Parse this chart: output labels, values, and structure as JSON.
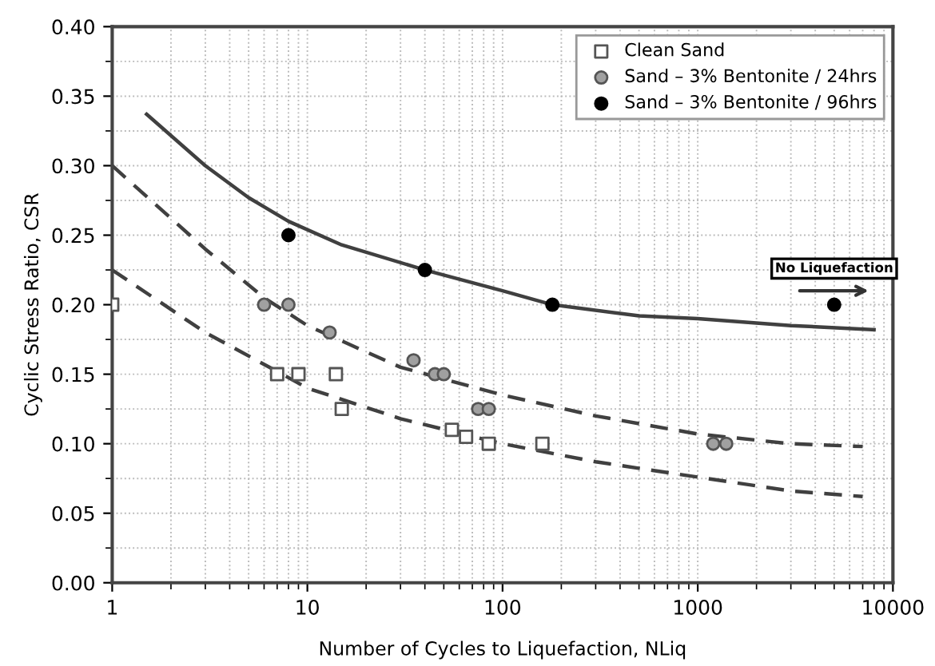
{
  "chart_data": {
    "type": "scatter",
    "xlabel": "Number of Cycles to Liquefaction, NLiq",
    "ylabel": "Cyclic Stress Ratio, CSR",
    "log": "x",
    "xlim": [
      1,
      10000
    ],
    "xticks": [
      1,
      10,
      100,
      1000,
      10000
    ],
    "ylim": [
      0,
      0.4
    ],
    "yticks": [
      {
        "value": 0,
        "label": "0.00"
      },
      {
        "value": 0.05,
        "label": "0.05"
      },
      {
        "value": 0.1,
        "label": "0.10"
      },
      {
        "value": 0.15,
        "label": "0.15"
      },
      {
        "value": 0.2,
        "label": "0.20"
      },
      {
        "value": 0.25,
        "label": "0.25"
      },
      {
        "value": 0.3,
        "label": "0.30"
      },
      {
        "value": 0.35,
        "label": "0.35"
      },
      {
        "value": 0.4,
        "label": "0.40"
      }
    ],
    "grid": true,
    "legend": "top right",
    "annotations": [
      {
        "text": "No Liquefaction",
        "x": 5000,
        "y": 0.21
      }
    ],
    "series": [
      {
        "type": "line",
        "line_style": "solid",
        "color": "#404040",
        "x": [
          1.5,
          3,
          5,
          8,
          15,
          40,
          100,
          180,
          500,
          1000,
          3000,
          8000
        ],
        "values": [
          0.337,
          0.3,
          0.277,
          0.26,
          0.243,
          0.225,
          0.21,
          0.2,
          0.192,
          0.19,
          0.185,
          0.182
        ]
      },
      {
        "type": "line",
        "line_style": "dashed",
        "color": "#404040",
        "x": [
          1,
          3,
          6,
          10,
          30,
          100,
          300,
          1000,
          3000,
          7000
        ],
        "values": [
          0.3,
          0.24,
          0.205,
          0.185,
          0.155,
          0.135,
          0.12,
          0.107,
          0.1,
          0.098
        ]
      },
      {
        "type": "line",
        "line_style": "dashed",
        "color": "#404040",
        "x": [
          1,
          3,
          7,
          10,
          30,
          100,
          300,
          1000,
          3000,
          7000
        ],
        "values": [
          0.225,
          0.18,
          0.152,
          0.14,
          0.118,
          0.1,
          0.087,
          0.076,
          0.066,
          0.062
        ]
      },
      {
        "name": "Clean Sand",
        "marker": "square",
        "color": "#ffffff",
        "x": [
          1,
          7,
          9,
          14,
          15,
          55,
          65,
          85,
          160
        ],
        "values": [
          0.2,
          0.15,
          0.15,
          0.15,
          0.125,
          0.11,
          0.105,
          0.1,
          0.1
        ]
      },
      {
        "name": "Sand – 3% Bentonite / 24hrs",
        "marker": "circle",
        "color": "#a0a0a0",
        "x": [
          6,
          8,
          13,
          35,
          45,
          50,
          75,
          85,
          1200,
          1400
        ],
        "values": [
          0.2,
          0.2,
          0.18,
          0.16,
          0.15,
          0.15,
          0.125,
          0.125,
          0.1,
          0.1
        ]
      },
      {
        "name": "Sand – 3% Bentonite / 96hrs",
        "marker": "circle",
        "color": "#000000",
        "x": [
          8,
          40,
          180,
          5000
        ],
        "values": [
          0.25,
          0.225,
          0.2,
          0.2
        ]
      }
    ]
  }
}
